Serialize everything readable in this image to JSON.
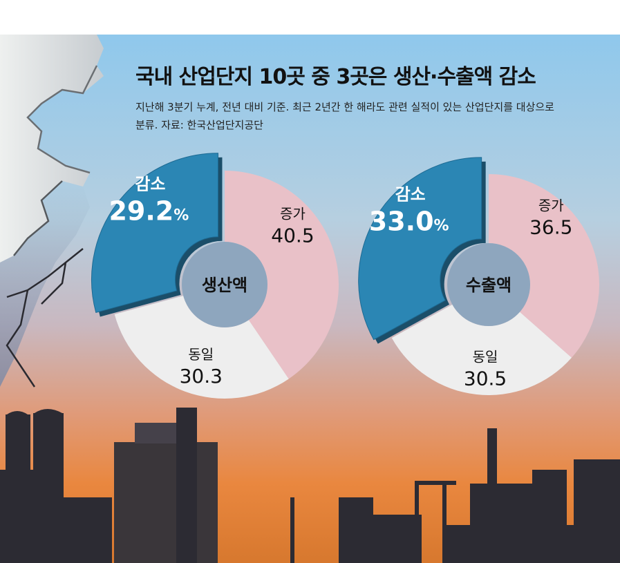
{
  "header": {
    "title": "국내 산업단지 10곳 중 3곳은 생산·수출액 감소",
    "subtitle": "지난해 3분기 누계, 전년 대비 기준. 최근 2년간 한 해라도 관련 실적이 있는 산업단지를 대상으로 분류. 자료: 한국산업단지공단"
  },
  "chart_data": [
    {
      "type": "pie",
      "title": "생산액",
      "unit": "%",
      "slices": [
        {
          "label": "감소",
          "value": 29.2,
          "value_text": "29.2",
          "unit_text": "%",
          "color": "#2b86b4"
        },
        {
          "label": "증가",
          "value": 40.5,
          "value_text": "40.5",
          "color": "#e9c1c8"
        },
        {
          "label": "동일",
          "value": 30.3,
          "value_text": "30.3",
          "color": "#eeeeee"
        }
      ]
    },
    {
      "type": "pie",
      "title": "수출액",
      "unit": "%",
      "slices": [
        {
          "label": "감소",
          "value": 33.0,
          "value_text": "33.0",
          "unit_text": "%",
          "color": "#2b86b4"
        },
        {
          "label": "증가",
          "value": 36.5,
          "value_text": "36.5",
          "color": "#e9c1c8"
        },
        {
          "label": "동일",
          "value": 30.5,
          "value_text": "30.5",
          "color": "#eeeeee"
        }
      ]
    }
  ]
}
